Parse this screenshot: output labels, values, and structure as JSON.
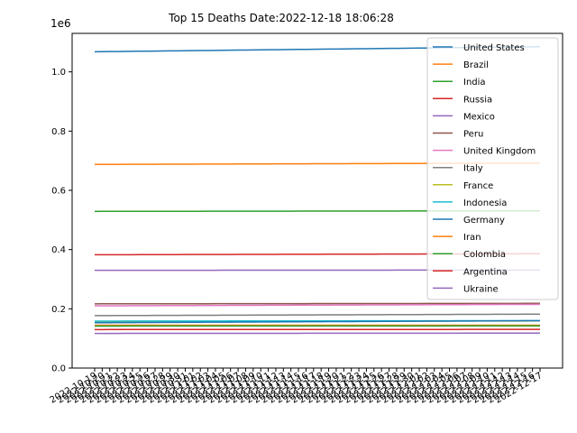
{
  "chart_data": {
    "type": "line",
    "title": "Top 15 Deaths Date:2022-12-18 18:06:28",
    "xlabel": "",
    "ylabel": "",
    "y_offset_label": "1e6",
    "ylim": [
      0,
      1130000
    ],
    "y_ticks": [
      "0.0",
      "0.2",
      "0.4",
      "0.6",
      "0.8",
      "1.0"
    ],
    "y_tick_values": [
      0,
      200000,
      400000,
      600000,
      800000,
      1000000
    ],
    "grid": false,
    "legend_position": "upper-right",
    "categories": [
      "2022-10-19",
      "2022-10-20",
      "2022-10-21",
      "2022-10-22",
      "2022-10-23",
      "2022-10-24",
      "2022-10-25",
      "2022-10-26",
      "2022-10-27",
      "2022-10-28",
      "2022-10-29",
      "2022-10-30",
      "2022-10-31",
      "2022-11-01",
      "2022-11-02",
      "2022-11-03",
      "2022-11-04",
      "2022-11-05",
      "2022-11-06",
      "2022-11-07",
      "2022-11-08",
      "2022-11-09",
      "2022-11-10",
      "2022-11-11",
      "2022-11-12",
      "2022-11-13",
      "2022-11-14",
      "2022-11-15",
      "2022-11-16",
      "2022-11-17",
      "2022-11-18",
      "2022-11-19",
      "2022-11-20",
      "2022-11-21",
      "2022-11-22",
      "2022-11-23",
      "2022-11-24",
      "2022-11-25",
      "2022-11-26",
      "2022-11-27",
      "2022-11-28",
      "2022-11-29",
      "2022-11-30",
      "2022-12-01",
      "2022-12-02",
      "2022-12-03",
      "2022-12-04",
      "2022-12-05",
      "2022-12-06",
      "2022-12-07",
      "2022-12-08",
      "2022-12-09",
      "2022-12-10",
      "2022-12-11",
      "2022-12-12",
      "2022-12-13",
      "2022-12-14",
      "2022-12-15",
      "2022-12-16",
      "2022-12-17"
    ],
    "series": [
      {
        "name": "United States",
        "color": "#1f77b4",
        "start": 1068000,
        "end": 1085000
      },
      {
        "name": "Brazil",
        "color": "#ff7f0e",
        "start": 687500,
        "end": 692000
      },
      {
        "name": "India",
        "color": "#2ca02c",
        "start": 529000,
        "end": 530700
      },
      {
        "name": "Russia",
        "color": "#d62728",
        "start": 382500,
        "end": 386000
      },
      {
        "name": "Mexico",
        "color": "#9467bd",
        "start": 330000,
        "end": 331000
      },
      {
        "name": "Peru",
        "color": "#8c564b",
        "start": 216800,
        "end": 218400
      },
      {
        "name": "United Kingdom",
        "color": "#e377c2",
        "start": 210000,
        "end": 215000
      },
      {
        "name": "Italy",
        "color": "#7f7f7f",
        "start": 177000,
        "end": 182000
      },
      {
        "name": "France",
        "color": "#bcbd22",
        "start": 157000,
        "end": 159000
      },
      {
        "name": "Indonesia",
        "color": "#17becf",
        "start": 158500,
        "end": 160000
      },
      {
        "name": "Germany",
        "color": "#1f77b4",
        "start": 153000,
        "end": 160000
      },
      {
        "name": "Iran",
        "color": "#ff7f0e",
        "start": 144600,
        "end": 144700
      },
      {
        "name": "Colombia",
        "color": "#2ca02c",
        "start": 141800,
        "end": 142300
      },
      {
        "name": "Argentina",
        "color": "#d62728",
        "start": 130000,
        "end": 130500
      },
      {
        "name": "Ukraine",
        "color": "#9467bd",
        "start": 117000,
        "end": 118000
      }
    ]
  }
}
